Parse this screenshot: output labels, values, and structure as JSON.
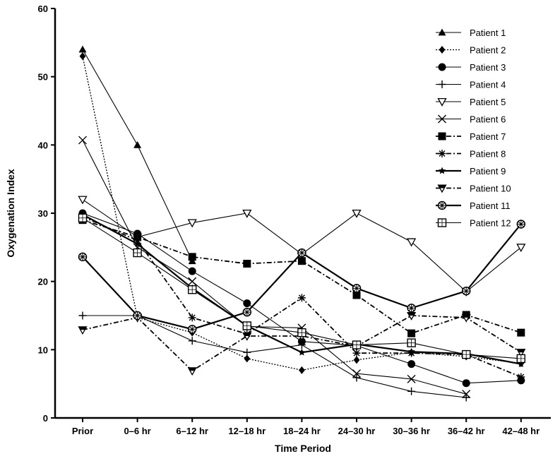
{
  "chart_data": {
    "type": "line",
    "title": "",
    "xlabel": "Time Period",
    "ylabel": "Oxygenation Index",
    "ylim": [
      0,
      60
    ],
    "yticks": [
      0,
      10,
      20,
      30,
      40,
      50,
      60
    ],
    "categories": [
      "Prior",
      "0–6 hr",
      "6–12 hr",
      "12–18 hr",
      "18–24 hr",
      "24–30 hr",
      "30–36 hr",
      "36–42 hr",
      "42–48 hr"
    ],
    "grid": false,
    "legend_position": "top-right",
    "series": [
      {
        "name": "Patient 1",
        "marker": "triangle-up",
        "style": "solid",
        "values": [
          54,
          40,
          23,
          null,
          null,
          null,
          null,
          null,
          null
        ]
      },
      {
        "name": "Patient 2",
        "marker": "diamond",
        "style": "dotted",
        "values": [
          53,
          14.7,
          12.5,
          8.7,
          7,
          8.5,
          9.6,
          9,
          8
        ]
      },
      {
        "name": "Patient 3",
        "marker": "circle",
        "style": "solid",
        "values": [
          30,
          27,
          21.5,
          16.8,
          11.2,
          10.6,
          7.9,
          5.1,
          5.5
        ]
      },
      {
        "name": "Patient 4",
        "marker": "plus",
        "style": "solid",
        "values": [
          15,
          15,
          11.3,
          9.6,
          10.7,
          5.9,
          3.9,
          3.0,
          null
        ]
      },
      {
        "name": "Patient 5",
        "marker": "triangle-down-open",
        "style": "solid",
        "values": [
          32,
          26.5,
          28.6,
          30,
          24,
          30,
          25.8,
          18.5,
          25
        ]
      },
      {
        "name": "Patient 6",
        "marker": "x",
        "style": "solid",
        "values": [
          40.7,
          25,
          20,
          13.4,
          13.2,
          6.5,
          5.7,
          3.5,
          null
        ]
      },
      {
        "name": "Patient 7",
        "marker": "square",
        "style": "dashdot",
        "values": [
          29,
          26.5,
          23.6,
          22.6,
          23,
          18,
          12.4,
          15.1,
          12.5
        ]
      },
      {
        "name": "Patient 8",
        "marker": "asterisk",
        "style": "dashdot",
        "values": [
          29.5,
          26,
          14.7,
          12.3,
          17.6,
          9.5,
          9.5,
          9.3,
          6
        ]
      },
      {
        "name": "Patient 9",
        "marker": "star",
        "style": "thick",
        "values": [
          29.8,
          25.5,
          19,
          13.5,
          9.6,
          10.8,
          9.7,
          9.4,
          7.9
        ]
      },
      {
        "name": "Patient 10",
        "marker": "triangle-down-half",
        "style": "dashdot",
        "values": [
          12.9,
          14.7,
          6.9,
          12,
          12,
          10.5,
          15,
          14.7,
          9.6
        ]
      },
      {
        "name": "Patient 11",
        "marker": "circle-cross",
        "style": "thick",
        "values": [
          23.6,
          15,
          13,
          15.5,
          24.2,
          19,
          16.1,
          18.6,
          28.4
        ]
      },
      {
        "name": "Patient 12",
        "marker": "square-plus",
        "style": "solid",
        "values": [
          29.3,
          24.2,
          18.8,
          13.5,
          12.5,
          10.7,
          11,
          9.3,
          8.7
        ]
      }
    ]
  }
}
